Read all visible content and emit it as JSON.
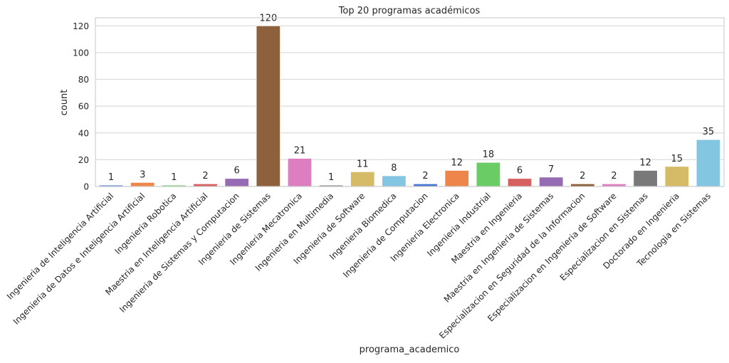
{
  "chart_data": {
    "type": "bar",
    "title": "Top 20 programas académicos",
    "xlabel": "programa_academico",
    "ylabel": "count",
    "ylim": [
      0,
      126
    ],
    "yticks": [
      0,
      20,
      40,
      60,
      80,
      100,
      120
    ],
    "grid": true,
    "categories": [
      "Ingenieria de Inteligencia Artificial",
      "Ingenieria de Datos e Inteligencia Artificial",
      "Ingenieria Robotica",
      "Maestria en Inteligencia Artificial",
      "Ingenieria de Sistemas y Computacion",
      "Ingenieria de Sistemas",
      "Ingenieria Mecatronica",
      "Ingenieria en Multimedia",
      "Ingenieria de Software",
      "Ingenieria Biomedica",
      "Ingenieria de Computacion",
      "Ingenieria Electronica",
      "Ingenieria Industrial",
      "Maestria en Ingenieria",
      "Maestria en Ingenieria de Sistemas",
      "Especializacion en Seguridad de la Informacion",
      "Especializacion en Ingenieria de Software",
      "Especializacion en Sistemas",
      "Doctorado en Ingenieria",
      "Tecnologia en Sistemas"
    ],
    "values": [
      1,
      3,
      1,
      2,
      6,
      120,
      21,
      1,
      11,
      8,
      2,
      12,
      18,
      6,
      7,
      2,
      2,
      12,
      15,
      35
    ],
    "data_labels": [
      "1",
      "3",
      "1",
      "2",
      "6",
      "120",
      "21",
      "1",
      "11",
      "8",
      "2",
      "12",
      "18",
      "6",
      "7",
      "2",
      "2",
      "12",
      "15",
      "35"
    ],
    "palette": [
      "#4878d0",
      "#ee854a",
      "#6acc64",
      "#d65f5f",
      "#956cb4",
      "#8c613c",
      "#dc7ec0",
      "#797979",
      "#d5bb67",
      "#82c6e2"
    ]
  }
}
